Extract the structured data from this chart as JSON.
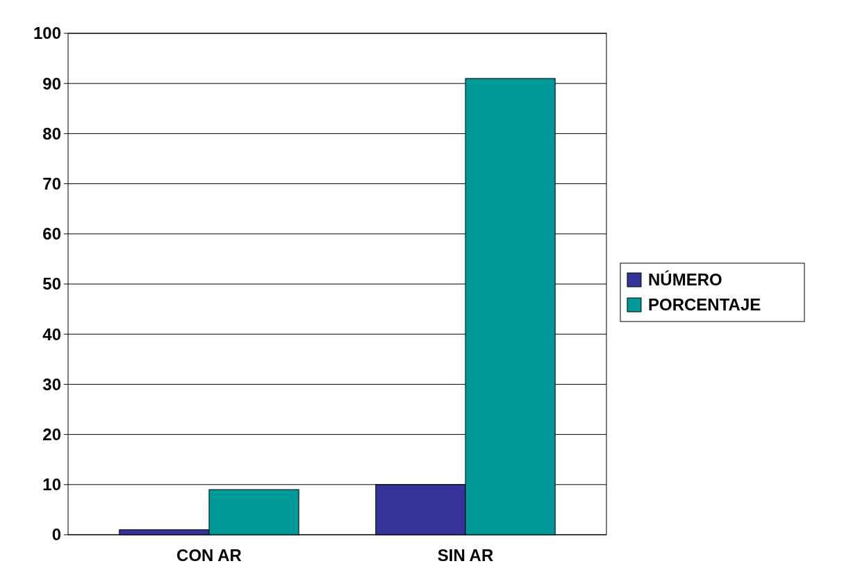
{
  "chart_data": {
    "type": "bar",
    "categories": [
      "CON AR",
      "SIN AR"
    ],
    "series": [
      {
        "name": "NÚMERO",
        "color": "#333399",
        "values": [
          1,
          10
        ]
      },
      {
        "name": "PORCENTAJE",
        "color": "#009999",
        "values": [
          9,
          91
        ]
      }
    ],
    "ylim": [
      0,
      100
    ],
    "yticks": [
      0,
      10,
      20,
      30,
      40,
      50,
      60,
      70,
      80,
      90,
      100
    ],
    "grid": "y",
    "legend": "right"
  }
}
